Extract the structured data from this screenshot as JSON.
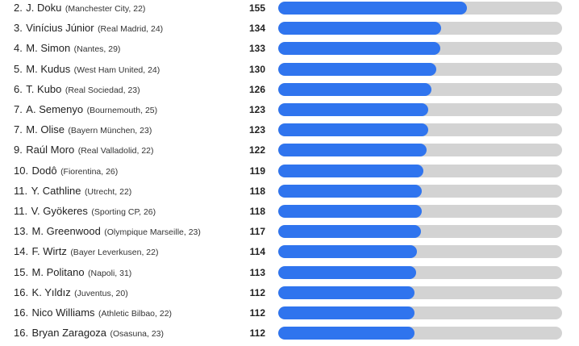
{
  "colors": {
    "bar": "#2f74ee",
    "track": "#d3d3d3",
    "text": "#222222"
  },
  "chart_data": {
    "type": "bar",
    "orientation": "horizontal",
    "xlim": [
      0,
      233
    ],
    "categories": [
      "2. J. Doku (Manchester City, 22)",
      "3. Vinícius Júnior (Real Madrid, 24)",
      "4. M. Simon (Nantes, 29)",
      "5. M. Kudus (West Ham United, 24)",
      "6. T. Kubo (Real Sociedad, 23)",
      "7. A. Semenyo (Bournemouth, 25)",
      "7. M. Olise (Bayern München, 23)",
      "9. Raúl Moro (Real Valladolid, 22)",
      "10. Dodô (Fiorentina, 26)",
      "11. Y. Cathline (Utrecht, 22)",
      "11. V. Gyökeres (Sporting CP, 26)",
      "13. M. Greenwood (Olympique Marseille, 23)",
      "14. F. Wirtz (Bayer Leverkusen, 22)",
      "15. M. Politano (Napoli, 31)",
      "16. K. Yıldız (Juventus, 20)",
      "16. Nico Williams (Athletic Bilbao, 22)",
      "16. Bryan Zaragoza (Osasuna, 23)"
    ],
    "values": [
      155,
      134,
      133,
      130,
      126,
      123,
      123,
      122,
      119,
      118,
      118,
      117,
      114,
      113,
      112,
      112,
      112
    ],
    "rows": [
      {
        "rank": "2.",
        "name": "J. Doku",
        "info": "(Manchester City, 22)",
        "value": "155"
      },
      {
        "rank": "3.",
        "name": "Vinícius Júnior",
        "info": "(Real Madrid, 24)",
        "value": "134"
      },
      {
        "rank": "4.",
        "name": "M. Simon",
        "info": "(Nantes, 29)",
        "value": "133"
      },
      {
        "rank": "5.",
        "name": "M. Kudus",
        "info": "(West Ham United, 24)",
        "value": "130"
      },
      {
        "rank": "6.",
        "name": "T. Kubo",
        "info": "(Real Sociedad, 23)",
        "value": "126"
      },
      {
        "rank": "7.",
        "name": "A. Semenyo",
        "info": "(Bournemouth, 25)",
        "value": "123"
      },
      {
        "rank": "7.",
        "name": "M. Olise",
        "info": "(Bayern München, 23)",
        "value": "123"
      },
      {
        "rank": "9.",
        "name": "Raúl Moro",
        "info": "(Real Valladolid, 22)",
        "value": "122"
      },
      {
        "rank": "10.",
        "name": "Dodô",
        "info": "(Fiorentina, 26)",
        "value": "119"
      },
      {
        "rank": "11.",
        "name": "Y. Cathline",
        "info": "(Utrecht, 22)",
        "value": "118"
      },
      {
        "rank": "11.",
        "name": "V. Gyökeres",
        "info": "(Sporting CP, 26)",
        "value": "118"
      },
      {
        "rank": "13.",
        "name": "M. Greenwood",
        "info": "(Olympique Marseille, 23)",
        "value": "117"
      },
      {
        "rank": "14.",
        "name": "F. Wirtz",
        "info": "(Bayer Leverkusen, 22)",
        "value": "114"
      },
      {
        "rank": "15.",
        "name": "M. Politano",
        "info": "(Napoli, 31)",
        "value": "113"
      },
      {
        "rank": "16.",
        "name": "K. Yıldız",
        "info": "(Juventus, 20)",
        "value": "112"
      },
      {
        "rank": "16.",
        "name": "Nico Williams",
        "info": "(Athletic Bilbao, 22)",
        "value": "112"
      },
      {
        "rank": "16.",
        "name": "Bryan Zaragoza",
        "info": "(Osasuna, 23)",
        "value": "112"
      }
    ]
  }
}
